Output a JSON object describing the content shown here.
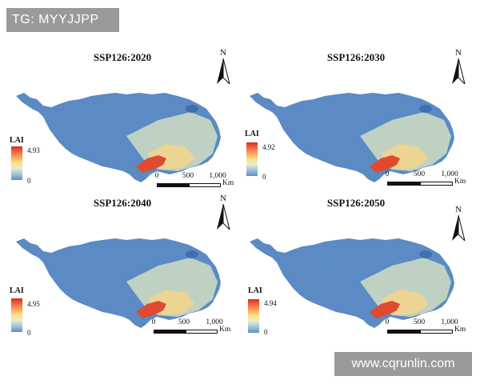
{
  "watermarks": {
    "top": "TG: MYYJJPP",
    "bottom": "www.cqrunlin.com"
  },
  "north_label": "N",
  "legend": {
    "title": "LAI",
    "min": "0"
  },
  "scale": {
    "ticks": [
      "0",
      "500",
      "1,000"
    ],
    "unit": "Km"
  },
  "panels": [
    {
      "title": "SSP126:2020",
      "lai_max": "4.93"
    },
    {
      "title": "SSP126:2030",
      "lai_max": "4.92"
    },
    {
      "title": "SSP126:2040",
      "lai_max": "4.95"
    },
    {
      "title": "SSP126:2050",
      "lai_max": "4.94"
    }
  ],
  "colors": {
    "region": "#5b8ac4",
    "region_alt": "#6f98c9",
    "dense": "#e04a2f",
    "mid": "#f5d58a",
    "light": "#dfe8c3"
  }
}
